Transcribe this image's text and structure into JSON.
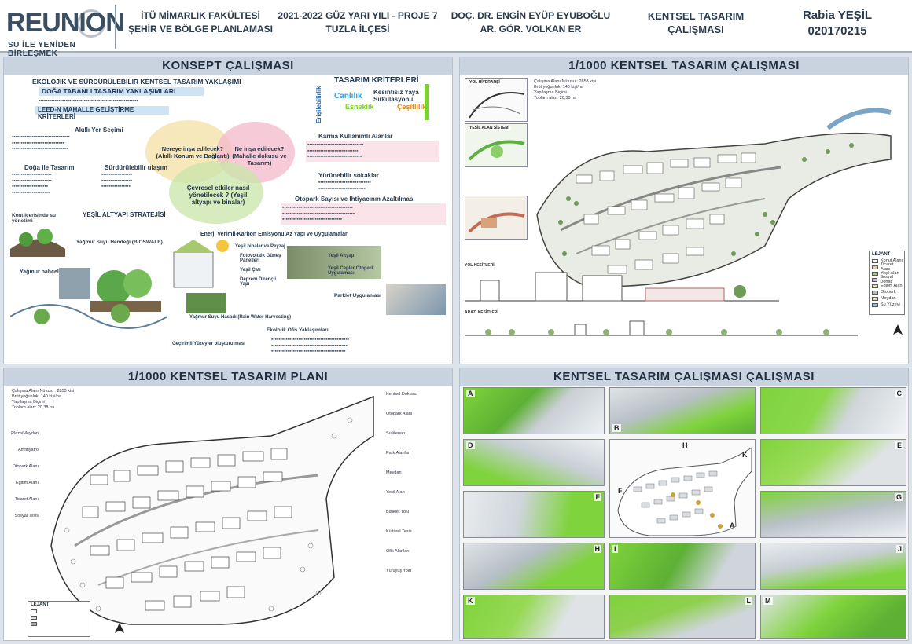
{
  "header": {
    "logo_text": "REUNION",
    "logo_tagline": "SU İLE YENİDEN BİRLEŞMEK",
    "school_line1": "İTÜ MİMARLIK FAKÜLTESİ",
    "school_line2": "ŞEHİR VE BÖLGE PLANLAMASI",
    "term_line1": "2021-2022 GÜZ YARI YILI - PROJE 7",
    "term_line2": "TUZLA İLÇESİ",
    "advisor_line1": "DOÇ. DR. ENGİN EYÜP EYUBOĞLU",
    "advisor_line2": "AR. GÖR. VOLKAN ER",
    "project_line1": "KENTSEL TASARIM",
    "project_line2": "ÇALIŞMASI",
    "student_name": "Rabia YEŞİL",
    "student_id": "020170215"
  },
  "concept": {
    "title": "KONSEPT ÇALIŞMASI",
    "heading1": "EKOLOJİK VE SÜRDÜRÜLEBİLİR KENTSEL TASARIM YAKLAŞIMI",
    "heading2": "DOĞA TABANLI TASARIM YAKLAŞIMLARI",
    "heading3": "LEED-N MAHALLE GELİŞTİRME KRİTERLERİ",
    "criteria_title": "TASARIM KRİTERLERİ",
    "criteria_words": [
      "Canlılık",
      "Kesintisiz Yaya Sirkülasyonu",
      "Esneklik",
      "Erişilebilirlik",
      "Çeşitlilik"
    ],
    "q1": "Nereye inşa edilecek? (Akıllı Konum ve Bağlantı)",
    "q2": "Ne inşa edilecek? (Mahalle dokusu ve Tasarım)",
    "q3": "Çevresel etkiler nasıl yönetilecek ? (Yeşil altyapı ve binalar)",
    "left_items": [
      "Akıllı Yer Seçimi",
      "Doğa ile Tasarım",
      "Sürdürülebilir ulaşım"
    ],
    "right_items": [
      "Karma Kullanımlı Alanlar",
      "Yürünebilir sokaklar",
      "Otopark Sayısı ve İhtiyacının Azaltılması"
    ],
    "strategy1": "YEŞİL ALTYAPI STRATEJİSİ",
    "strategy2": "Enerji Verimli-Karbon Emisyonu Az Yapı ve Uygulamalar",
    "bullet_labels": [
      "Kent içerisinde su yönetimi",
      "Yağmur Suyu Hendeği (BİOSWALE)",
      "Yağmur bahçeleri",
      "Yeşil binalar ve Peyzaj",
      "Fotovoltaik Güneş Panelleri",
      "Yeşil Çatı",
      "Deprem Dirençli Yapı",
      "Yeşil Altyapı",
      "Yeşil Cepler Otopark Uygulaması",
      "Yağmur Suyu Hasadı (Rain Water Harvesting)",
      "Parklet Uygulaması",
      "Geçirimli Yüzeyler oluşturulması",
      "Ekolojik Ofis Yaklaşımları"
    ]
  },
  "plan_top": {
    "title": "1/1000 KENTSEL TASARIM ÇALIŞMASI",
    "inset_labels": [
      "YOL HİYERARŞİ",
      "YEŞİL ALAN SİSTEMİ",
      "YOL KESİTLERİ",
      "ARAZİ KESİTLERİ"
    ],
    "legend_title": "LEJANT",
    "legend_items": [
      "Konut Alanı",
      "Ticaret Alanı",
      "Yeşil Alan",
      "Sosyal Donatı",
      "Eğitim Alanı",
      "Otopark",
      "Meydan",
      "Su Yüzeyi"
    ],
    "stats": [
      "Çalışma Alanı Nüfusu : 2853 kişi",
      "Brüt yoğunluk: 140 kişi/ha",
      "Yapılaşma Biçimi",
      "Toplam alan: 20,38 ha"
    ]
  },
  "plan_bottom": {
    "title": "1/1000 KENTSEL TASARIM PLANI",
    "legend_title": "LEJANT",
    "stats": [
      "Çalışma Alanı Nüfusu : 2853 kişi",
      "Brüt yoğunluk: 140 kişi/ha",
      "Yapılaşma Biçimi",
      "Toplam alan: 20,38 ha"
    ],
    "labels_left": [
      "Plaza/Meydan",
      "Amfitiyatro",
      "Otopark Alanı",
      "Eğitim Alanı",
      "Ticaret Alanı",
      "Sosyal Tesis"
    ],
    "labels_right": [
      "Kentsel Dokusu",
      "Otopark Alanı",
      "Su Kenarı",
      "Park Alanları",
      "Meydan",
      "Yeşil Alan",
      "Bisiklet Yolu",
      "Kültürel Tesis",
      "Ofis Alanları",
      "Yürüyüş Yolu"
    ]
  },
  "views": {
    "title": "KENTSEL TASARIM ÇALIŞMASI ÇALIŞMASI",
    "letters": [
      "A",
      "B",
      "C",
      "D",
      "E",
      "F",
      "G",
      "H",
      "I",
      "J",
      "K",
      "L",
      "M"
    ]
  },
  "colors": {
    "panel_title_bg": "#c9d3df",
    "green_accent": "#7bd22e",
    "pink_bubble": "#f4b8c9",
    "blue_bubble": "#a9c8ee",
    "green_bubble": "#c8e6a8"
  }
}
